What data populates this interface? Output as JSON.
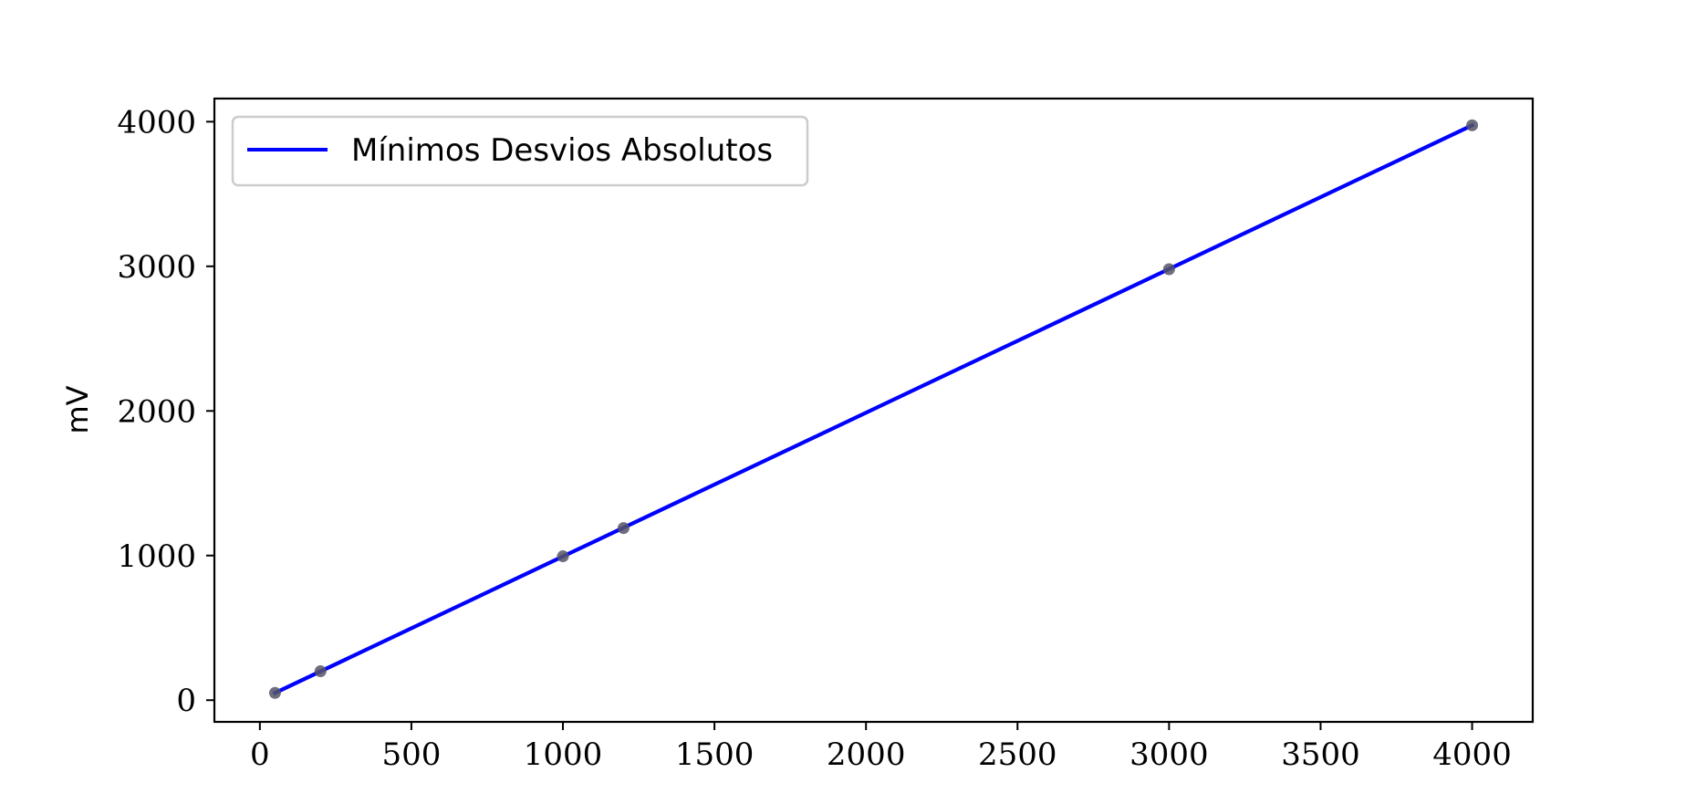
{
  "chart_data": {
    "type": "line",
    "title": "",
    "xlabel": "",
    "ylabel": "mV",
    "xlim": [
      -150,
      4200
    ],
    "ylim": [
      -150,
      4160
    ],
    "xticks": [
      0,
      500,
      1000,
      1500,
      2000,
      2500,
      3000,
      3500,
      4000
    ],
    "yticks": [
      0,
      1000,
      2000,
      3000,
      4000
    ],
    "xtick_labels": [
      "0",
      "500",
      "1000",
      "1500",
      "2000",
      "2500",
      "3000",
      "3500",
      "4000"
    ],
    "ytick_labels": [
      "0",
      "1000",
      "2000",
      "3000",
      "4000"
    ],
    "grid": false,
    "legend_position": "top-left",
    "series": [
      {
        "name": "Mínimos Desvios Absolutos",
        "kind": "line",
        "color": "#0000ff",
        "x": [
          50,
          4000
        ],
        "y": [
          50,
          3975
        ]
      },
      {
        "kind": "scatter",
        "color": "#555566",
        "x": [
          50,
          200,
          1000,
          1200,
          3000,
          4000
        ],
        "y": [
          50,
          200,
          995,
          1190,
          2980,
          3975
        ]
      }
    ]
  }
}
